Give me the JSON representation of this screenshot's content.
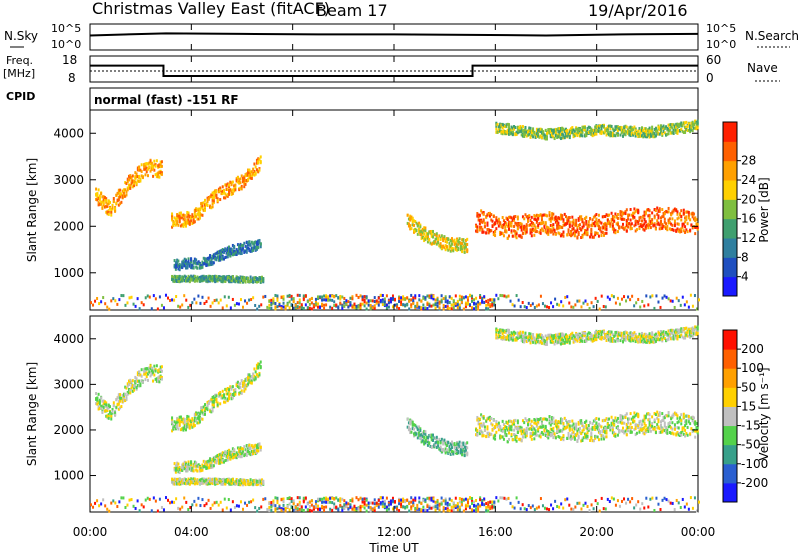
{
  "header": {
    "title": "Christmas Valley East (fitACF)",
    "beam": "Beam 17",
    "date": "19/Apr/2016"
  },
  "panels": {
    "nsky": {
      "label": "N.Sky",
      "right_label": "N.Search",
      "top_tick": "10^5",
      "bottom_tick": "10^0",
      "right_top_tick": "10^5",
      "right_bottom_tick": "10^0"
    },
    "freq": {
      "label_line1": "Freq.",
      "label_line2": "[MHz]",
      "right_label": "Nave",
      "ticks": [
        "18",
        "8"
      ],
      "right_ticks": [
        "60",
        "0"
      ]
    },
    "cpid": {
      "label": "CPID",
      "value": "normal (fast) -151 RF"
    }
  },
  "axes": {
    "ylabel": "Slant Range [km]",
    "xlabel": "Time UT",
    "y_ticks": [
      "1000",
      "2000",
      "3000",
      "4000"
    ],
    "x_ticks": [
      "00:00",
      "04:00",
      "08:00",
      "12:00",
      "16:00",
      "20:00",
      "00:00"
    ]
  },
  "colorbars": {
    "power": {
      "title": "Power [dB]",
      "ticks": [
        "4",
        "8",
        "12",
        "16",
        "20",
        "24",
        "28"
      ],
      "colors": [
        "#1a1aff",
        "#1f4fc0",
        "#2f7f9f",
        "#3f9f6f",
        "#7fbf3f",
        "#ffd000",
        "#ffa000",
        "#ff6000",
        "#ff2000"
      ]
    },
    "velocity": {
      "title": "Velocity [m s⁻¹]",
      "ticks": [
        "200",
        "100",
        "50",
        "15",
        "-15",
        "-50",
        "-100",
        "-200"
      ],
      "colors": [
        "#1a1aff",
        "#2a5fd0",
        "#37a08a",
        "#54d24b",
        "#c0c0c0",
        "#ffd000",
        "#ffa000",
        "#ff6000",
        "#ff1000"
      ]
    }
  },
  "chart_data": [
    {
      "type": "line",
      "name": "nsky",
      "x": [
        0,
        3,
        6,
        9,
        12,
        15,
        18,
        21,
        24
      ],
      "values": [
        2.8,
        3.2,
        3.1,
        3.0,
        3.0,
        2.9,
        2.8,
        3.0,
        3.1
      ]
    },
    {
      "type": "line",
      "name": "frequency",
      "x": [
        0,
        2.9,
        2.9,
        15.1,
        15.1,
        24
      ],
      "values": [
        14.3,
        14.3,
        10.3,
        10.3,
        14.3,
        14.3
      ],
      "ylim": [
        8,
        18
      ]
    },
    {
      "type": "heatmap",
      "name": "power",
      "xlim": [
        0,
        24
      ],
      "ylim": [
        200,
        4500
      ],
      "features": [
        {
          "x": [
            0.2,
            0.8,
            1.5,
            2.2,
            2.8
          ],
          "y": [
            2700,
            2400,
            2950,
            3300,
            3250
          ],
          "width": 350,
          "level": 6
        },
        {
          "x": [
            3.2,
            4.0,
            5.0,
            6.0,
            6.7
          ],
          "y": [
            2150,
            2200,
            2700,
            3000,
            3400
          ],
          "width": 300,
          "level": 6
        },
        {
          "x": [
            3.3,
            4.5,
            5.5,
            6.7
          ],
          "y": [
            1200,
            1250,
            1500,
            1650
          ],
          "width": 220,
          "level": 2
        },
        {
          "x": [
            3.2,
            5.0,
            6.8
          ],
          "y": [
            900,
            900,
            880
          ],
          "width": 120,
          "level": 3
        },
        {
          "x": [
            12.5,
            13.2,
            14.0,
            14.9
          ],
          "y": [
            2150,
            1850,
            1650,
            1600
          ],
          "width": 300,
          "level": 5
        },
        {
          "x": [
            15.2,
            16.5,
            18.0,
            19.5,
            21.0,
            22.5,
            24.0
          ],
          "y": [
            2150,
            2000,
            2100,
            2000,
            2150,
            2200,
            2100
          ],
          "width": 480,
          "level": 7
        },
        {
          "x": [
            16.0,
            18.0,
            20.0,
            22.0,
            24.0
          ],
          "y": [
            4150,
            4000,
            4100,
            4050,
            4200
          ],
          "width": 220,
          "level": 4
        }
      ]
    },
    {
      "type": "heatmap",
      "name": "velocity",
      "xlim": [
        0,
        24
      ],
      "ylim": [
        200,
        4500
      ],
      "features": [
        {
          "x": [
            0.2,
            0.8,
            1.5,
            2.2,
            2.8
          ],
          "y": [
            2700,
            2400,
            2950,
            3300,
            3250
          ],
          "width": 350,
          "level": 4
        },
        {
          "x": [
            3.2,
            4.0,
            5.0,
            6.0,
            6.7
          ],
          "y": [
            2150,
            2200,
            2700,
            3000,
            3400
          ],
          "width": 300,
          "level": 4
        },
        {
          "x": [
            3.3,
            4.5,
            5.5,
            6.7
          ],
          "y": [
            1200,
            1250,
            1500,
            1650
          ],
          "width": 220,
          "level": 4
        },
        {
          "x": [
            3.2,
            5.0,
            6.8
          ],
          "y": [
            900,
            900,
            880
          ],
          "width": 120,
          "level": 4
        },
        {
          "x": [
            12.5,
            13.2,
            14.0,
            14.9
          ],
          "y": [
            2150,
            1850,
            1650,
            1600
          ],
          "width": 300,
          "level": 3
        },
        {
          "x": [
            15.2,
            16.5,
            18.0,
            19.5,
            21.0,
            22.5,
            24.0
          ],
          "y": [
            2150,
            2000,
            2100,
            2000,
            2150,
            2200,
            2100
          ],
          "width": 480,
          "level": 4
        },
        {
          "x": [
            16.0,
            18.0,
            20.0,
            22.0,
            24.0
          ],
          "y": [
            4150,
            4000,
            4100,
            4050,
            4200
          ],
          "width": 220,
          "level": 4
        }
      ]
    }
  ]
}
